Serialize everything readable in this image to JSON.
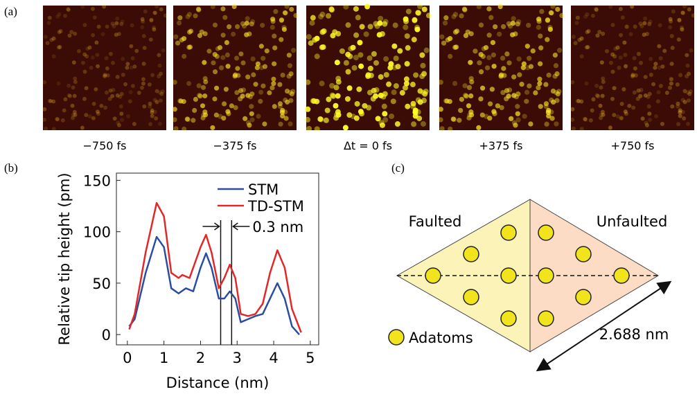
{
  "panels": {
    "a": {
      "label": "(a)",
      "captions": [
        "−750 fs",
        "−375 fs",
        "Δt = 0 fs",
        "+375 fs",
        "+750 fs"
      ]
    },
    "b": {
      "label": "(b)"
    },
    "c": {
      "label": "(c)",
      "left": "Faulted",
      "right": "Unfaulted",
      "legend": "Adatoms",
      "dimension": "2.688 nm"
    }
  },
  "chart_data": {
    "type": "line",
    "xlabel": "Distance (nm)",
    "ylabel": "Relative tip height (pm)",
    "xlim": [
      -0.3,
      5.23
    ],
    "ylim": [
      -10,
      157
    ],
    "xticks": [
      0,
      1,
      2,
      3,
      4,
      5
    ],
    "yticks": [
      0,
      50,
      100,
      150
    ],
    "series": [
      {
        "name": "STM",
        "color": "#2b4da0",
        "x": [
          0.05,
          0.2,
          0.5,
          0.8,
          1.0,
          1.2,
          1.4,
          1.6,
          1.8,
          2.0,
          2.15,
          2.3,
          2.5,
          2.65,
          2.8,
          2.95,
          3.1,
          3.3,
          3.5,
          3.7,
          3.9,
          4.1,
          4.3,
          4.5,
          4.7
        ],
        "values": [
          8,
          15,
          60,
          95,
          85,
          45,
          40,
          45,
          42,
          65,
          79,
          65,
          35,
          35,
          42,
          35,
          12,
          15,
          18,
          20,
          35,
          50,
          35,
          8,
          0
        ]
      },
      {
        "name": "TD-STM",
        "color": "#e02828",
        "x": [
          0.05,
          0.2,
          0.5,
          0.8,
          1.0,
          1.2,
          1.4,
          1.5,
          1.7,
          2.0,
          2.15,
          2.3,
          2.5,
          2.65,
          2.8,
          2.95,
          3.1,
          3.3,
          3.5,
          3.7,
          3.9,
          4.1,
          4.3,
          4.5,
          4.75
        ],
        "values": [
          5,
          20,
          80,
          128,
          115,
          60,
          55,
          58,
          55,
          85,
          97,
          80,
          45,
          55,
          68,
          55,
          20,
          18,
          20,
          30,
          60,
          82,
          65,
          25,
          2
        ]
      }
    ],
    "markers": [
      2.55,
      2.85
    ],
    "annotation": "0.3 nm"
  }
}
